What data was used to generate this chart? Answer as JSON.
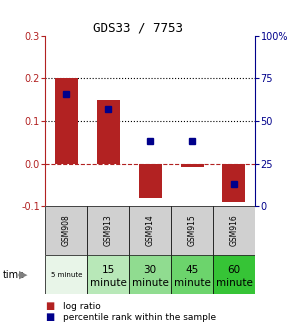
{
  "title": "GDS33 / 7753",
  "samples": [
    "GSM908",
    "GSM913",
    "GSM914",
    "GSM915",
    "GSM916"
  ],
  "time_labels_top": [
    "5 minute",
    "15",
    "30",
    "45",
    "60"
  ],
  "time_labels_bot": [
    "",
    "minute",
    "minute",
    "minute",
    "minute"
  ],
  "log_ratio": [
    0.2,
    0.15,
    -0.08,
    -0.008,
    -0.09
  ],
  "percentile_rank": [
    66,
    57,
    38,
    38,
    13
  ],
  "bar_color": "#b22222",
  "dot_color": "#00008b",
  "ylim_left": [
    -0.1,
    0.3
  ],
  "ylim_right": [
    0,
    100
  ],
  "yticks_left": [
    -0.1,
    0.0,
    0.1,
    0.2,
    0.3
  ],
  "yticks_right": [
    0,
    25,
    50,
    75,
    100
  ],
  "hline_y": [
    0.1,
    0.2
  ],
  "bg_color": "#ffffff",
  "time_colors": [
    "#e8f5e8",
    "#b8e8b8",
    "#90dc90",
    "#6cd46c",
    "#36c436"
  ],
  "sample_bg": "#d0d0d0",
  "bar_width": 0.55
}
